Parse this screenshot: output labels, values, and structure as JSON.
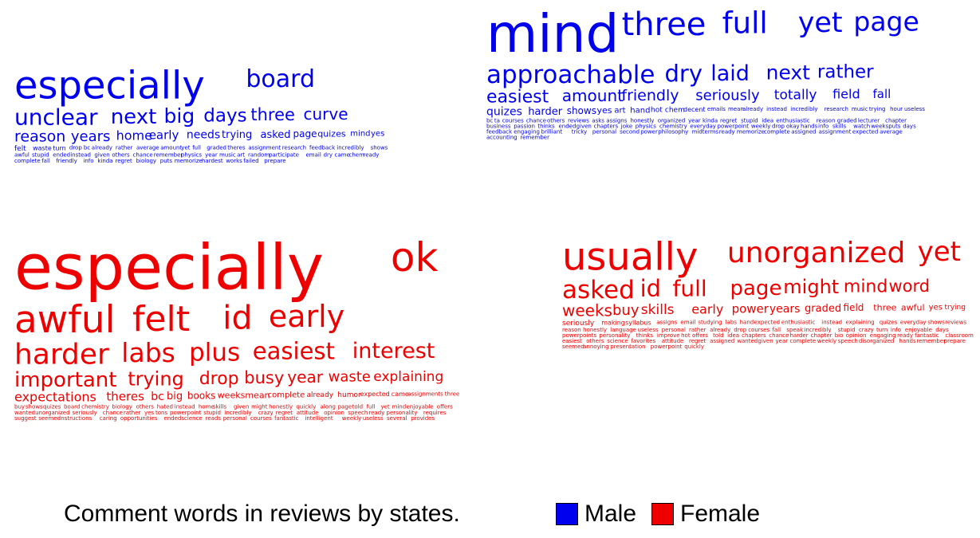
{
  "caption": "Comment words in reviews by states.",
  "legend": [
    {
      "label": "Male",
      "color": "#0000ee"
    },
    {
      "label": "Female",
      "color": "#ee0000"
    }
  ],
  "chart_data": {
    "type": "wordcloud",
    "colors": {
      "male": "#0000ee",
      "female": "#ee0000"
    },
    "clouds": [
      {
        "name": "left",
        "male": [
          "especially",
          "board",
          "unclear",
          "next",
          "big",
          "days",
          "three",
          "curve",
          "reason",
          "years",
          "home",
          "early",
          "needs",
          "trying",
          "asked",
          "page",
          "quizes",
          "mind",
          "yes",
          "felt",
          "waste",
          "turn",
          "drop",
          "bc",
          "already",
          "rather",
          "average",
          "amount",
          "yet",
          "full",
          "graded",
          "theres",
          "assignment",
          "research",
          "feedback",
          "incredibly",
          "shows",
          "awful",
          "stupid",
          "ended",
          "instead",
          "given",
          "others",
          "chance",
          "remember",
          "physics",
          "year",
          "music",
          "art",
          "random",
          "participate",
          "email",
          "dry",
          "came",
          "chem",
          "ready",
          "complete",
          "fall",
          "friendly",
          "info",
          "kinda",
          "regret",
          "biology",
          "puts",
          "memorize",
          "hardest",
          "works",
          "failed",
          "prepare"
        ],
        "female": [
          "especially",
          "ok",
          "awful",
          "felt",
          "id",
          "early",
          "harder",
          "labs",
          "plus",
          "easiest",
          "interest",
          "important",
          "trying",
          "drop",
          "busy",
          "year",
          "waste",
          "explaining",
          "expectations",
          "theres",
          "bc",
          "big",
          "books",
          "weeks",
          "mean",
          "complete",
          "already",
          "humor",
          "expected",
          "came",
          "assignments",
          "three",
          "buy",
          "shows",
          "quizes",
          "board",
          "chemistry",
          "biology",
          "others",
          "hated",
          "instead",
          "home",
          "skills",
          "given",
          "might",
          "honestly",
          "quickly",
          "along",
          "page",
          "told",
          "full",
          "yet",
          "mind",
          "enjoyable",
          "offers",
          "wanted",
          "unorganized",
          "seriously",
          "chance",
          "rather",
          "yes",
          "tons",
          "powerpoint",
          "stupid",
          "incredibly",
          "crazy",
          "regret",
          "attitude",
          "opinion",
          "speech",
          "ready",
          "personality",
          "requires",
          "suggest",
          "seemed",
          "instructions",
          "caring",
          "opportunities",
          "ended",
          "science",
          "reads",
          "personal",
          "courses",
          "fantastic",
          "intelligent",
          "weekly",
          "useless",
          "several",
          "provides"
        ]
      },
      {
        "name": "right",
        "male": [
          "mind",
          "three",
          "full",
          "yet",
          "page",
          "approachable",
          "dry",
          "laid",
          "next",
          "rather",
          "easiest",
          "amount",
          "friendly",
          "seriously",
          "totally",
          "field",
          "fall",
          "quizes",
          "harder",
          "shows",
          "yes",
          "art",
          "hand",
          "hot",
          "chem",
          "decent",
          "emails",
          "mean",
          "already",
          "instead",
          "incredibly",
          "research",
          "music",
          "trying",
          "hour",
          "useless",
          "bc",
          "ta",
          "courses",
          "chance",
          "others",
          "reviews",
          "asks",
          "assigns",
          "honestly",
          "organized",
          "year",
          "kinda",
          "regret",
          "stupid",
          "idea",
          "enthusiastic",
          "reason",
          "graded",
          "lecturer",
          "chapter",
          "business",
          "passion",
          "thinks",
          "ended",
          "given",
          "chapters",
          "joke",
          "physics",
          "chemistry",
          "everyday",
          "powerpoint",
          "weekly",
          "drop",
          "okay",
          "hands",
          "info",
          "skills",
          "watch",
          "weeks",
          "puts",
          "days",
          "feedback",
          "engaging",
          "brilliant",
          "tricky",
          "personal",
          "second",
          "power",
          "philosophy",
          "midterms",
          "ready",
          "memorize",
          "complete",
          "assigned",
          "assignment",
          "expected",
          "average",
          "accounting",
          "remember"
        ],
        "female": [
          "usually",
          "unorganized",
          "yet",
          "asked",
          "id",
          "full",
          "page",
          "might",
          "mind",
          "word",
          "weeks",
          "buy",
          "skills",
          "early",
          "power",
          "years",
          "graded",
          "field",
          "three",
          "awful",
          "yes",
          "trying",
          "seriously",
          "making",
          "syllabus",
          "assigns",
          "email",
          "studying",
          "labs",
          "hand",
          "expected",
          "enthusiastic",
          "instead",
          "explaining",
          "quizes",
          "everyday",
          "shows",
          "reviews",
          "reason",
          "honestly",
          "language",
          "useless",
          "personal",
          "rather",
          "already",
          "drop",
          "courses",
          "fall",
          "speak",
          "incredibly",
          "stupid",
          "crazy",
          "turn",
          "info",
          "enjoyable",
          "days",
          "powerpoints",
          "personality",
          "thinks",
          "improve",
          "hot",
          "offers",
          "told",
          "idea",
          "chapters",
          "chance",
          "harder",
          "chapter",
          "bio",
          "opinion",
          "engaging",
          "ready",
          "fantastic",
          "classroom",
          "easiest",
          "others",
          "science",
          "favorites",
          "attitude",
          "regret",
          "assigned",
          "wanted",
          "given",
          "year",
          "complete",
          "weekly",
          "speech",
          "disorganized",
          "hands",
          "remember",
          "prepare",
          "seemed",
          "annoying",
          "presentation",
          "powerpoint",
          "quickly"
        ]
      }
    ]
  }
}
